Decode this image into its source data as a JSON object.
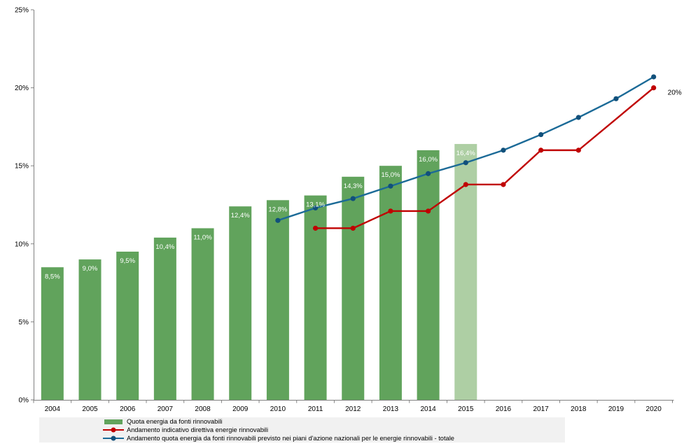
{
  "chart_data": {
    "type": "combo-bar-line",
    "title": "",
    "xlabel": "",
    "ylabel": "",
    "x": [
      "2004",
      "2005",
      "2006",
      "2007",
      "2008",
      "2009",
      "2010",
      "2011",
      "2012",
      "2013",
      "2014",
      "2015",
      "2016",
      "2017",
      "2018",
      "2019",
      "2020"
    ],
    "ylim": [
      0,
      25
    ],
    "y_ticks": [
      {
        "value": 0,
        "label": "0%"
      },
      {
        "value": 5,
        "label": "5%"
      },
      {
        "value": 10,
        "label": "10%"
      },
      {
        "value": 15,
        "label": "15%"
      },
      {
        "value": 20,
        "label": "20%"
      },
      {
        "value": 25,
        "label": "25%"
      }
    ],
    "grid": false,
    "legend_position": "bottom-left",
    "series": [
      {
        "name": "Quota energia da fonti rinnovabili",
        "type": "bar",
        "color": "#61a35c",
        "highlight_color": "#aecfa4",
        "highlight_year": "2015",
        "label_color": "#ffffff",
        "points": [
          {
            "year": "2004",
            "value": 8.5,
            "label": "8,5%"
          },
          {
            "year": "2005",
            "value": 9.0,
            "label": "9,0%"
          },
          {
            "year": "2006",
            "value": 9.5,
            "label": "9,5%"
          },
          {
            "year": "2007",
            "value": 10.4,
            "label": "10,4%"
          },
          {
            "year": "2008",
            "value": 11.0,
            "label": "11,0%"
          },
          {
            "year": "2009",
            "value": 12.4,
            "label": "12,4%"
          },
          {
            "year": "2010",
            "value": 12.8,
            "label": "12,8%"
          },
          {
            "year": "2011",
            "value": 13.1,
            "label": "13,1%"
          },
          {
            "year": "2012",
            "value": 14.3,
            "label": "14,3%"
          },
          {
            "year": "2013",
            "value": 15.0,
            "label": "15,0%"
          },
          {
            "year": "2014",
            "value": 16.0,
            "label": "16,0%"
          },
          {
            "year": "2015",
            "value": 16.4,
            "label": "16,4%"
          }
        ]
      },
      {
        "name": "Andamento indicativo direttiva energie rinnovabili",
        "type": "line",
        "color": "#c00000",
        "marker_color": "#c00000",
        "points": [
          {
            "year": "2011",
            "value": 11.0
          },
          {
            "year": "2012",
            "value": 11.0
          },
          {
            "year": "2013",
            "value": 12.1
          },
          {
            "year": "2014",
            "value": 12.1
          },
          {
            "year": "2015",
            "value": 13.8
          },
          {
            "year": "2016",
            "value": 13.8
          },
          {
            "year": "2017",
            "value": 16.0
          },
          {
            "year": "2018",
            "value": 16.0
          },
          {
            "year": "2020",
            "value": 20.0
          }
        ]
      },
      {
        "name": "Andamento quota energia da fonti rinnovabili previsto nei piani d'azione nazionali per le energie rinnovabili - totale",
        "type": "line",
        "color": "#1b6a97",
        "marker_color": "#11507b",
        "points": [
          {
            "year": "2010",
            "value": 11.5
          },
          {
            "year": "2011",
            "value": 12.3
          },
          {
            "year": "2012",
            "value": 12.9
          },
          {
            "year": "2013",
            "value": 13.7
          },
          {
            "year": "2014",
            "value": 14.5
          },
          {
            "year": "2015",
            "value": 15.2
          },
          {
            "year": "2016",
            "value": 16.0
          },
          {
            "year": "2017",
            "value": 17.0
          },
          {
            "year": "2018",
            "value": 18.1
          },
          {
            "year": "2019",
            "value": 19.3
          },
          {
            "year": "2020",
            "value": 20.7
          }
        ]
      }
    ],
    "annotations": [
      {
        "text": "20%",
        "year": "2020",
        "value": 20.0,
        "color": "#000000"
      }
    ],
    "axis_color": "#808080",
    "tick_label_color": "#000000"
  }
}
